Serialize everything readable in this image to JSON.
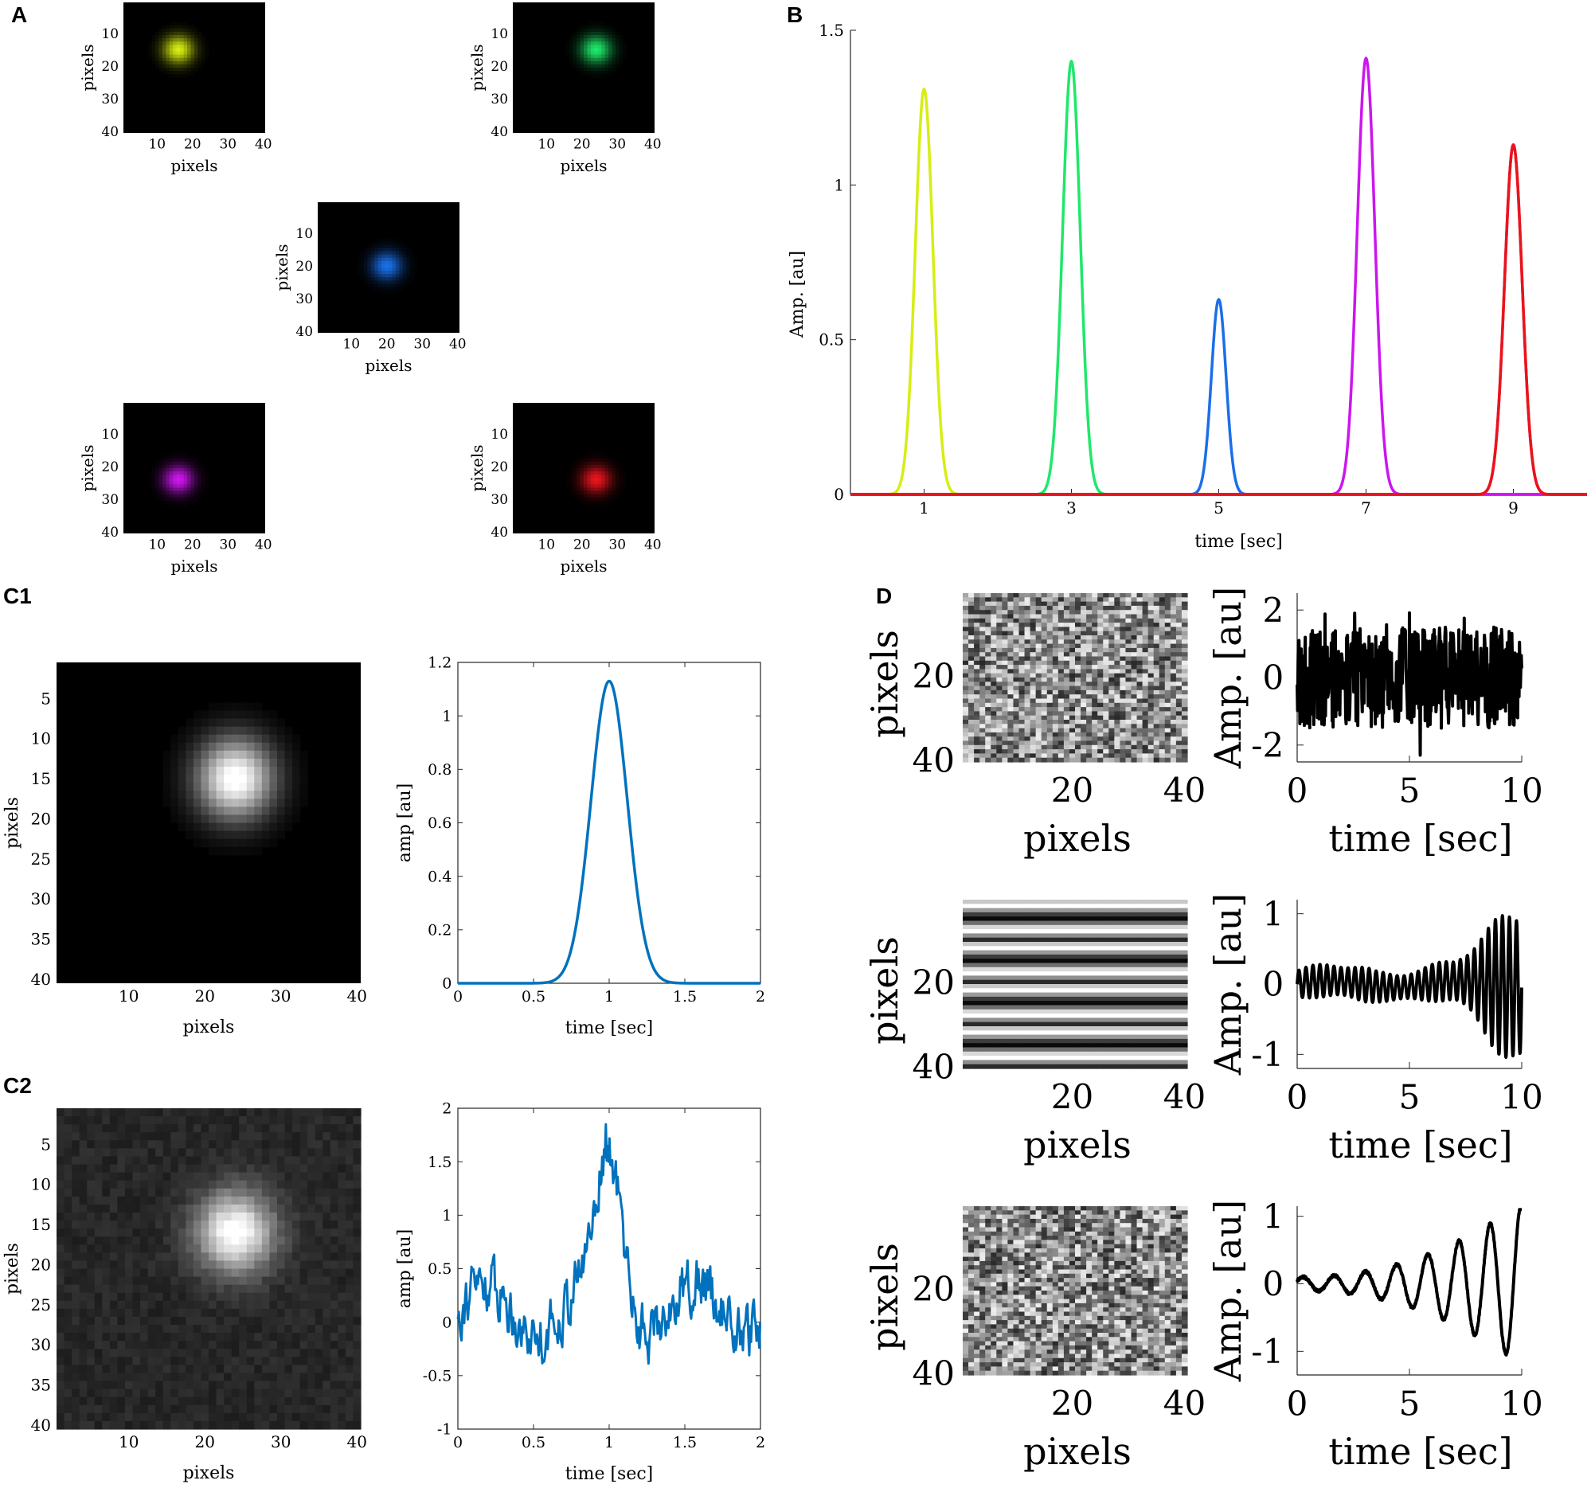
{
  "panel_labels": {
    "A": "A",
    "B": "B",
    "C1": "C1",
    "C2": "C2",
    "D": "D"
  },
  "colors": {
    "yellow": "#d6ee12",
    "green": "#1ee86a",
    "blue": "#1a6fe8",
    "magenta": "#cc16ee",
    "red": "#e8141e",
    "matlab_blue": "#0072bd",
    "black": "#000000"
  },
  "chart_data": [
    {
      "id": "A",
      "type": "heatmap",
      "description_of_content": "five 40x40 images each with one blurred colored spot",
      "xlabel": "pixels",
      "ylabel": "pixels",
      "xticks": [
        10,
        20,
        30,
        40
      ],
      "yticks": [
        10,
        20,
        30,
        40
      ],
      "grid": false,
      "images": [
        {
          "color": "#d6ee12",
          "spot_center": [
            16,
            15
          ],
          "spot_sigma": 3
        },
        {
          "color": "#1ee86a",
          "spot_center": [
            24,
            15
          ],
          "spot_sigma": 3
        },
        {
          "color": "#1a6fe8",
          "spot_center": [
            20,
            20
          ],
          "spot_sigma": 3
        },
        {
          "color": "#cc16ee",
          "spot_center": [
            16,
            24
          ],
          "spot_sigma": 3
        },
        {
          "color": "#e8141e",
          "spot_center": [
            24,
            24
          ],
          "spot_sigma": 3
        }
      ]
    },
    {
      "id": "B",
      "type": "line",
      "xlabel": "time [sec]",
      "ylabel": "Amp. [au]",
      "xticks": [
        1,
        3,
        5,
        7,
        9
      ],
      "yticks": [
        0,
        0.5,
        1,
        1.5
      ],
      "xlim": [
        0,
        10
      ],
      "ylim": [
        0,
        1.5
      ],
      "grid": false,
      "series": [
        {
          "color": "#d6ee12",
          "peak_time": 1,
          "peak_value": 1.31,
          "sigma": 0.12
        },
        {
          "color": "#1ee86a",
          "peak_time": 3,
          "peak_value": 1.4,
          "sigma": 0.12
        },
        {
          "color": "#1a6fe8",
          "peak_time": 5,
          "peak_value": 0.63,
          "sigma": 0.1
        },
        {
          "color": "#cc16ee",
          "peak_time": 7,
          "peak_value": 1.41,
          "sigma": 0.12
        },
        {
          "color": "#e8141e",
          "peak_time": 9,
          "peak_value": 1.13,
          "sigma": 0.12
        }
      ]
    },
    {
      "id": "C1-image",
      "type": "heatmap",
      "xlabel": "pixels",
      "ylabel": "pixels",
      "xticks": [
        10,
        20,
        30,
        40
      ],
      "yticks": [
        5,
        10,
        15,
        20,
        25,
        30,
        35,
        40
      ],
      "spot_center": [
        24,
        15
      ],
      "spot_sigma": 3.5,
      "noise": false
    },
    {
      "id": "C1-trace",
      "type": "line",
      "xlabel": "time [sec]",
      "ylabel": "amp [au]",
      "xticks": [
        0,
        0.5,
        1,
        1.5,
        2
      ],
      "yticks": [
        0,
        0.2,
        0.4,
        0.6,
        0.8,
        1,
        1.2
      ],
      "xlim": [
        0,
        2
      ],
      "ylim": [
        0,
        1.2
      ],
      "grid": false,
      "series": [
        {
          "color": "#0072bd",
          "peak_time": 1,
          "peak_value": 1.13,
          "sigma": 0.12
        }
      ]
    },
    {
      "id": "C2-image",
      "type": "heatmap",
      "xlabel": "pixels",
      "ylabel": "pixels",
      "xticks": [
        10,
        20,
        30,
        40
      ],
      "yticks": [
        5,
        10,
        15,
        20,
        25,
        30,
        35,
        40
      ],
      "spot_center": [
        24,
        16
      ],
      "spot_sigma": 3.5,
      "noise": true
    },
    {
      "id": "C2-trace",
      "type": "line",
      "xlabel": "time [sec]",
      "ylabel": "amp [au]",
      "xticks": [
        0,
        0.5,
        1,
        1.5,
        2
      ],
      "yticks": [
        -1,
        -0.5,
        0,
        0.5,
        1,
        1.5,
        2
      ],
      "xlim": [
        0,
        2
      ],
      "ylim": [
        -1,
        2
      ],
      "grid": false,
      "series": [
        {
          "color": "#0072bd",
          "peak_time": 1,
          "peak_value": 1.85,
          "noise_amplitude": 0.45
        }
      ]
    },
    {
      "id": "D",
      "type": "line",
      "rows": [
        {
          "image_pattern": "random-noise",
          "image_xlabel": "pixels",
          "image_ylabel": "pixels",
          "image_xticks": [
            20,
            40
          ],
          "image_yticks": [
            20,
            40
          ],
          "trace_xlabel": "time [sec]",
          "trace_ylabel": "Amp. [au]",
          "trace_xticks": [
            0,
            5,
            10
          ],
          "trace_yticks": [
            -2,
            0,
            2
          ],
          "trace_xlim": [
            0,
            10
          ],
          "trace_ylim": [
            -2.5,
            2.5
          ],
          "trace_kind": "white-noise",
          "trace_range": [
            -2.5,
            2.4
          ]
        },
        {
          "image_pattern": "horizontal-stripes",
          "image_xlabel": "pixels",
          "image_ylabel": "pixels",
          "image_xticks": [
            20,
            40
          ],
          "image_yticks": [
            20,
            40
          ],
          "trace_xlabel": "time [sec]",
          "trace_ylabel": "Amp. [au]",
          "trace_xticks": [
            0,
            5,
            10
          ],
          "trace_yticks": [
            -1,
            0,
            1
          ],
          "trace_xlim": [
            0,
            10
          ],
          "trace_ylim": [
            -1.2,
            1.2
          ],
          "trace_kind": "fast-oscillation-growing",
          "trace_range": [
            -1.2,
            1.2
          ]
        },
        {
          "image_pattern": "random-noise",
          "image_xlabel": "pixels",
          "image_ylabel": "pixels",
          "image_xticks": [
            20,
            40
          ],
          "image_yticks": [
            20,
            40
          ],
          "trace_xlabel": "time [sec]",
          "trace_ylabel": "Amp. [au]",
          "trace_xticks": [
            0,
            5,
            10
          ],
          "trace_yticks": [
            -1,
            0,
            1
          ],
          "trace_xlim": [
            0,
            10
          ],
          "trace_ylim": [
            -1.35,
            1.15
          ],
          "trace_kind": "slow-oscillation-growing",
          "trace_range": [
            -1.35,
            1.1
          ]
        }
      ]
    }
  ]
}
